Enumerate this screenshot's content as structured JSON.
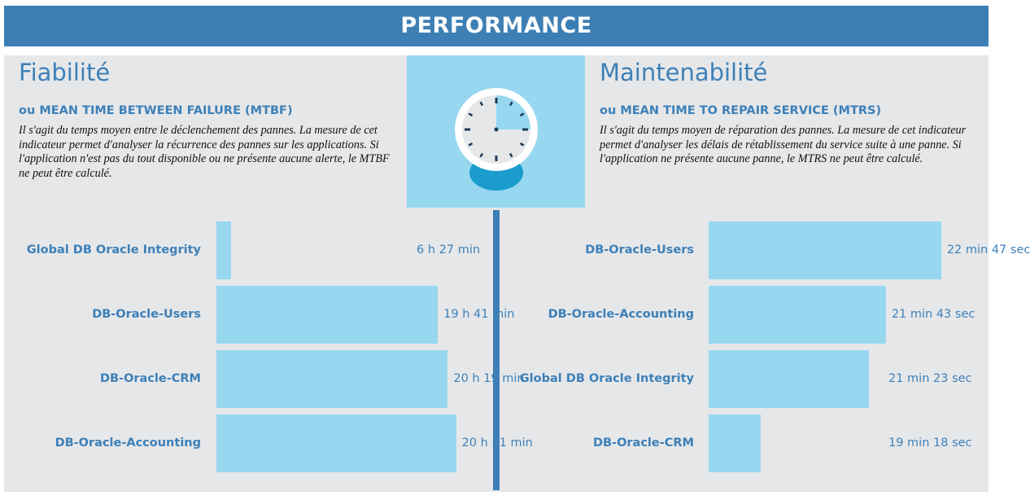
{
  "header": {
    "title": "PERFORMANCE"
  },
  "left": {
    "title": "Fiabilité",
    "subtitle": "ou MEAN TIME BETWEEN FAILURE (MTBF)",
    "description": "Il s'agit du temps moyen entre le déclenchement des pannes. La mesure de cet indicateur permet d'analyser la récurrence des pannes sur les applications. Si l'application n'est pas du tout disponible ou ne présente aucune alerte, le MTBF ne peut être calculé."
  },
  "right": {
    "title": "Maintenabilité",
    "subtitle": "ou MEAN TIME TO REPAIR SERVICE (MTRS)",
    "description": "Il s'agit du temps moyen de réparation des pannes. La mesure de cet indicateur permet d'analyser les délais de rétablissement du service suite à une panne. Si l'application ne présente aucune panne, le MTRS ne peut être calculé."
  },
  "icon": "clock-icon",
  "colors": {
    "accent": "#3d7fb4",
    "bar": "#97d7f0",
    "panel": "#e6e7e9"
  },
  "chart_data": [
    {
      "type": "bar",
      "orientation": "horizontal",
      "unit": "minutes",
      "categories": [
        "Global DB Oracle Integrity",
        "DB-Oracle-Users",
        "DB-Oracle-CRM",
        "DB-Oracle-Accounting"
      ],
      "values": [
        387,
        1181,
        1219,
        1251
      ],
      "labels": [
        "6 h 27 min",
        "19 h 41 min",
        "20 h 19 min",
        "20 h 51 min"
      ],
      "xlim": [
        330,
        1393
      ]
    },
    {
      "type": "bar",
      "orientation": "horizontal",
      "unit": "seconds",
      "categories": [
        "DB-Oracle-Users",
        "DB-Oracle-Accounting",
        "Global DB Oracle Integrity",
        "DB-Oracle-CRM"
      ],
      "values": [
        1367,
        1303,
        1283,
        1158
      ],
      "labels": [
        "22 min 47 sec",
        "21 min 43 sec",
        "21 min 23 sec",
        "19 min 18 sec"
      ],
      "xlim": [
        1098,
        1418
      ]
    }
  ]
}
